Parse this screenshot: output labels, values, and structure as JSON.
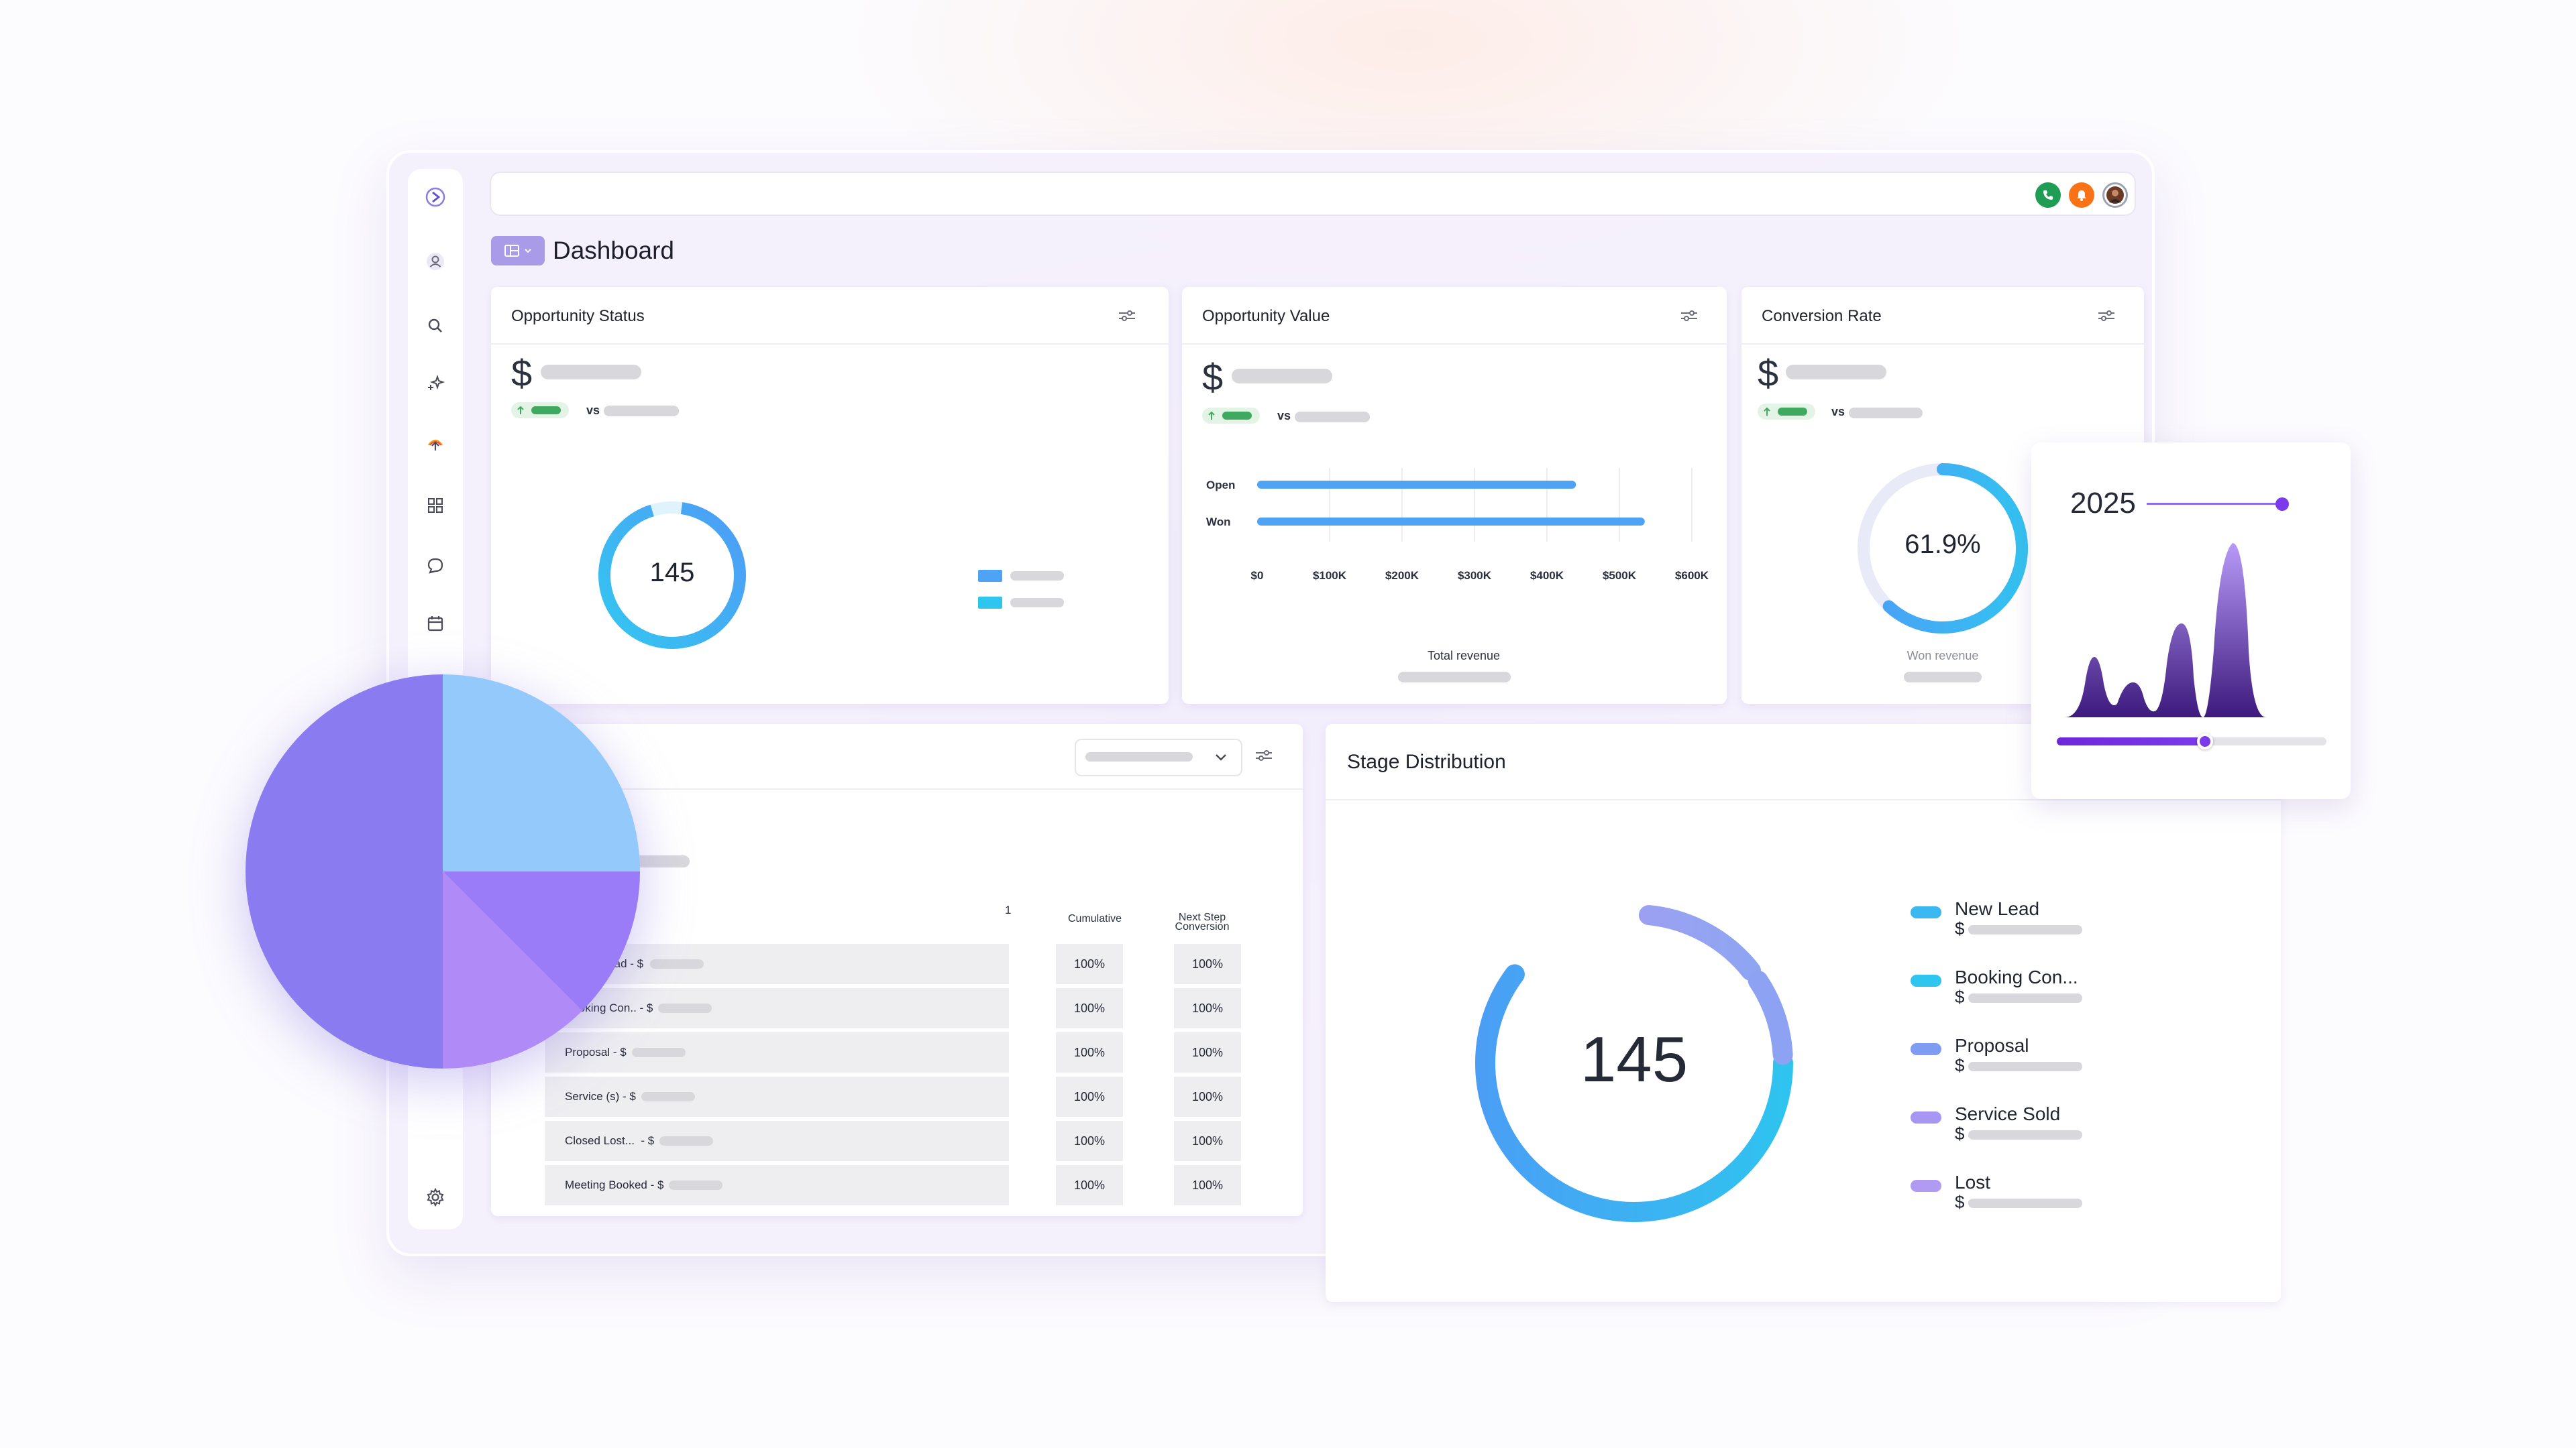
{
  "header": {
    "title": "Dashboard",
    "layout_button_icon": "layout-grid-icon"
  },
  "topbar": {
    "actions": [
      "phone-icon",
      "bell-icon",
      "avatar"
    ],
    "colors": {
      "phone": "#1f9d55",
      "bell": "#f97316"
    }
  },
  "sidebar": {
    "items": [
      "logo-icon",
      "contacts-icon",
      "search-icon",
      "ai-sparkle-icon",
      "launch-icon",
      "apps-grid-icon",
      "chat-icon",
      "calendar-icon",
      "settings-icon"
    ]
  },
  "opportunity_status": {
    "title": "Opportunity Status",
    "currency": "$",
    "vs_label": "vs",
    "total": "145",
    "colors": {
      "ring_start": "#33c6f0",
      "ring_end": "#4f9cf6"
    }
  },
  "opportunity_value": {
    "title": "Opportunity Value",
    "currency": "$",
    "vs_label": "vs",
    "xlabel": "Total revenue",
    "chart_data": {
      "type": "bar",
      "orientation": "horizontal",
      "categories": [
        "Open",
        "Won"
      ],
      "values": [
        440000,
        535000
      ],
      "xlabel": "Total revenue",
      "xlim": [
        0,
        600000
      ],
      "ticks": [
        "$0",
        "$100K",
        "$200K",
        "$300K",
        "$400K",
        "$500K",
        "$600K"
      ],
      "grid": true,
      "bar_color": "#4ea3f5"
    }
  },
  "conversion_rate": {
    "title": "Conversion Rate",
    "currency": "$",
    "vs_label": "vs",
    "value": "61.9%",
    "value_fraction": 0.619,
    "footer_label": "Won revenue"
  },
  "funnel": {
    "column_marker": "1",
    "columns": {
      "cumulative": "Cumulative",
      "next_step_line1": "Next Step",
      "next_step_line2": "Conversion"
    },
    "rows": [
      {
        "label": "New Lead - $",
        "visible_label": "...ead - $",
        "cumulative": "100%",
        "next_step": "100%"
      },
      {
        "label": "Booking Con.. - $",
        "cumulative": "100%",
        "next_step": "100%"
      },
      {
        "label": "Proposal - $",
        "cumulative": "100%",
        "next_step": "100%"
      },
      {
        "label": "Service (s) - $",
        "cumulative": "100%",
        "next_step": "100%"
      },
      {
        "label": "Closed Lost...  - $",
        "cumulative": "100%",
        "next_step": "100%"
      },
      {
        "label": "Meeting Booked - $",
        "cumulative": "100%",
        "next_step": "100%"
      }
    ]
  },
  "stage_distribution": {
    "title": "Stage Distribution",
    "total": "145",
    "legend": [
      {
        "name": "New Lead",
        "currency": "$",
        "color": "#3ab8f2"
      },
      {
        "name": "Booking Con...",
        "currency": "$",
        "color": "#2ec6ef"
      },
      {
        "name": "Proposal",
        "currency": "$",
        "color": "#7e9cf2"
      },
      {
        "name": "Service Sold",
        "currency": "$",
        "color": "#a897f2"
      },
      {
        "name": "Lost",
        "currency": "$",
        "color": "#b09af2"
      }
    ]
  },
  "year_widget": {
    "year": "2025",
    "slider_fraction": 0.55,
    "colors": {
      "accent": "#7c3aed",
      "area_top": "#a78bfa",
      "area_bottom": "#3b1a7a"
    }
  },
  "pie_overlay": {
    "chart_data": {
      "type": "pie",
      "values": [
        25,
        12.5,
        12.5,
        50
      ],
      "colors": [
        "#93c9fb",
        "#9b7cf8",
        "#b08af7",
        "#8a7cf0"
      ]
    }
  }
}
